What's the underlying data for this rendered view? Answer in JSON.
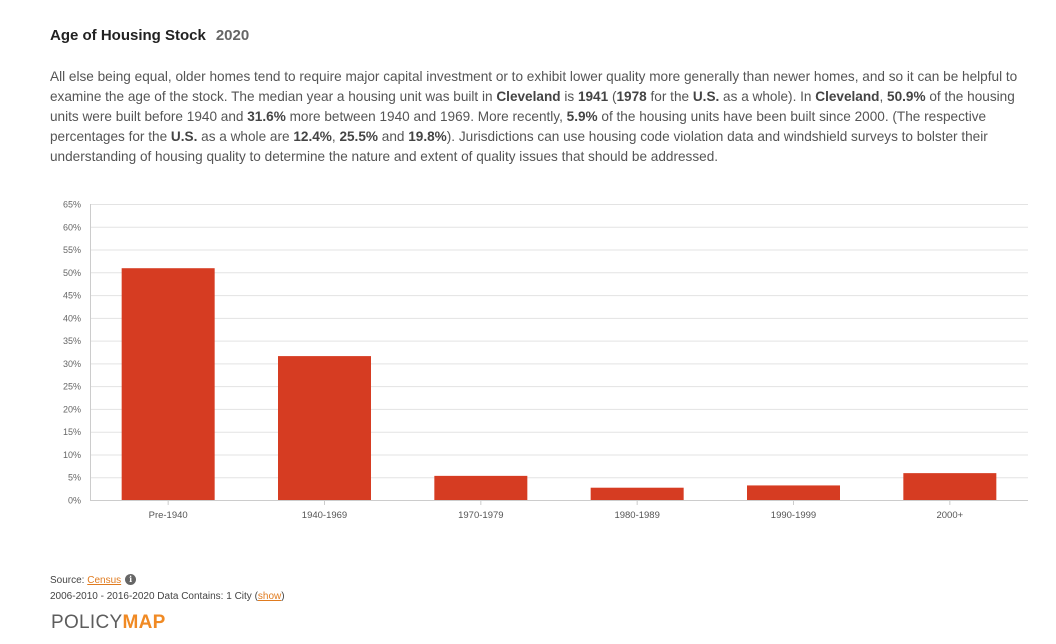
{
  "header": {
    "title": "Age of Housing Stock",
    "year": "2020"
  },
  "description": {
    "segments": [
      {
        "t": "All else being equal, older homes tend to require major capital investment or to exhibit lower quality more generally than newer homes, and so it can be helpful to examine the age of the stock. The median year a housing unit was built in ",
        "b": false
      },
      {
        "t": "Cleveland",
        "b": true
      },
      {
        "t": " is ",
        "b": false
      },
      {
        "t": "1941",
        "b": true
      },
      {
        "t": " (",
        "b": false
      },
      {
        "t": "1978",
        "b": true
      },
      {
        "t": " for the ",
        "b": false
      },
      {
        "t": "U.S.",
        "b": true
      },
      {
        "t": " as a whole). In ",
        "b": false
      },
      {
        "t": "Cleveland",
        "b": true
      },
      {
        "t": ", ",
        "b": false
      },
      {
        "t": "50.9%",
        "b": true
      },
      {
        "t": " of the housing units were built before 1940 and ",
        "b": false
      },
      {
        "t": "31.6%",
        "b": true
      },
      {
        "t": " more between 1940 and 1969. More recently, ",
        "b": false
      },
      {
        "t": "5.9%",
        "b": true
      },
      {
        "t": " of the housing units have been built since 2000. (The respective percentages for the ",
        "b": false
      },
      {
        "t": "U.S.",
        "b": true
      },
      {
        "t": " as a whole are ",
        "b": false
      },
      {
        "t": "12.4%",
        "b": true
      },
      {
        "t": ", ",
        "b": false
      },
      {
        "t": "25.5%",
        "b": true
      },
      {
        "t": " and ",
        "b": false
      },
      {
        "t": "19.8%",
        "b": true
      },
      {
        "t": "). Jurisdictions can use housing code violation data and windshield surveys to bolster their understanding of housing quality to determine the nature and extent of quality issues that should be addressed.",
        "b": false
      }
    ]
  },
  "chart_data": {
    "type": "bar",
    "title": "",
    "xlabel": "",
    "ylabel": "",
    "categories": [
      "Pre-1940",
      "1940-1969",
      "1970-1979",
      "1980-1989",
      "1990-1999",
      "2000+"
    ],
    "values": [
      50.9,
      31.6,
      5.3,
      2.7,
      3.2,
      5.9
    ],
    "ylim": [
      0,
      65
    ],
    "yticks": [
      0,
      5,
      10,
      15,
      20,
      25,
      30,
      35,
      40,
      45,
      50,
      55,
      60,
      65
    ],
    "ytick_suffix": "%",
    "bar_color": "#d63c22",
    "grid": true
  },
  "footer": {
    "source_label": "Source:",
    "source_link": "Census",
    "info_icon": "i",
    "data_line_prefix": "2006-2010 - 2016-2020 Data Contains: 1 City (",
    "show_link": "show",
    "data_line_suffix": ")"
  },
  "logo": {
    "part1": "POLICY",
    "part2": "MAP"
  }
}
